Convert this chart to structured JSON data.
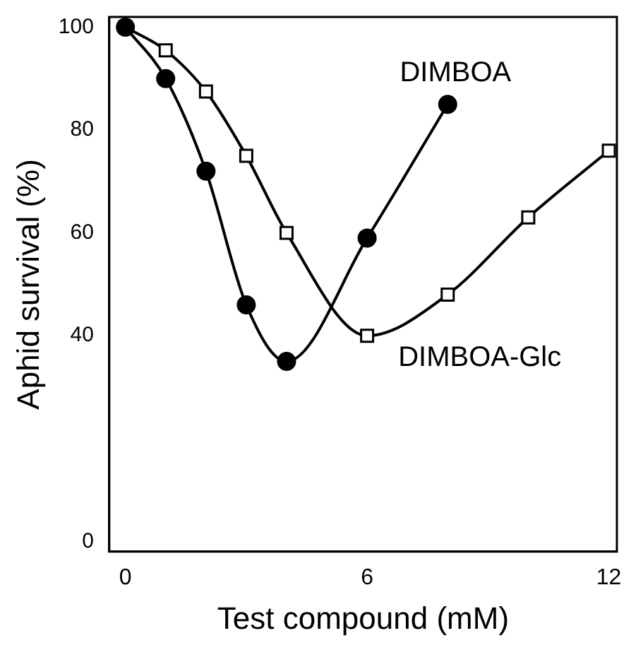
{
  "chart_data": {
    "type": "line",
    "xlabel": "Test compound (mM)",
    "ylabel": "Aphid survival (%)",
    "xlim": [
      -0.4,
      12.2
    ],
    "xticks": [
      0,
      6,
      12
    ],
    "ylim": [
      -2,
      102
    ],
    "yticks": [
      0,
      40,
      60,
      80,
      100
    ],
    "grid": false,
    "legend": false,
    "line_style": "solid",
    "series": [
      {
        "name": "DIMBOA",
        "color": "#000000",
        "marker": "circle",
        "x": [
          0,
          1,
          2,
          3,
          4,
          6,
          8
        ],
        "values": [
          100,
          90,
          72,
          46,
          35,
          59,
          85
        ]
      },
      {
        "name": "DIMBOA-Glc",
        "color": "#000000",
        "marker": "square",
        "x": [
          0,
          1,
          2,
          3,
          4,
          6,
          8,
          10,
          12
        ],
        "values": [
          100,
          95.5,
          87.5,
          75,
          60,
          40,
          48,
          63,
          76
        ]
      }
    ]
  }
}
